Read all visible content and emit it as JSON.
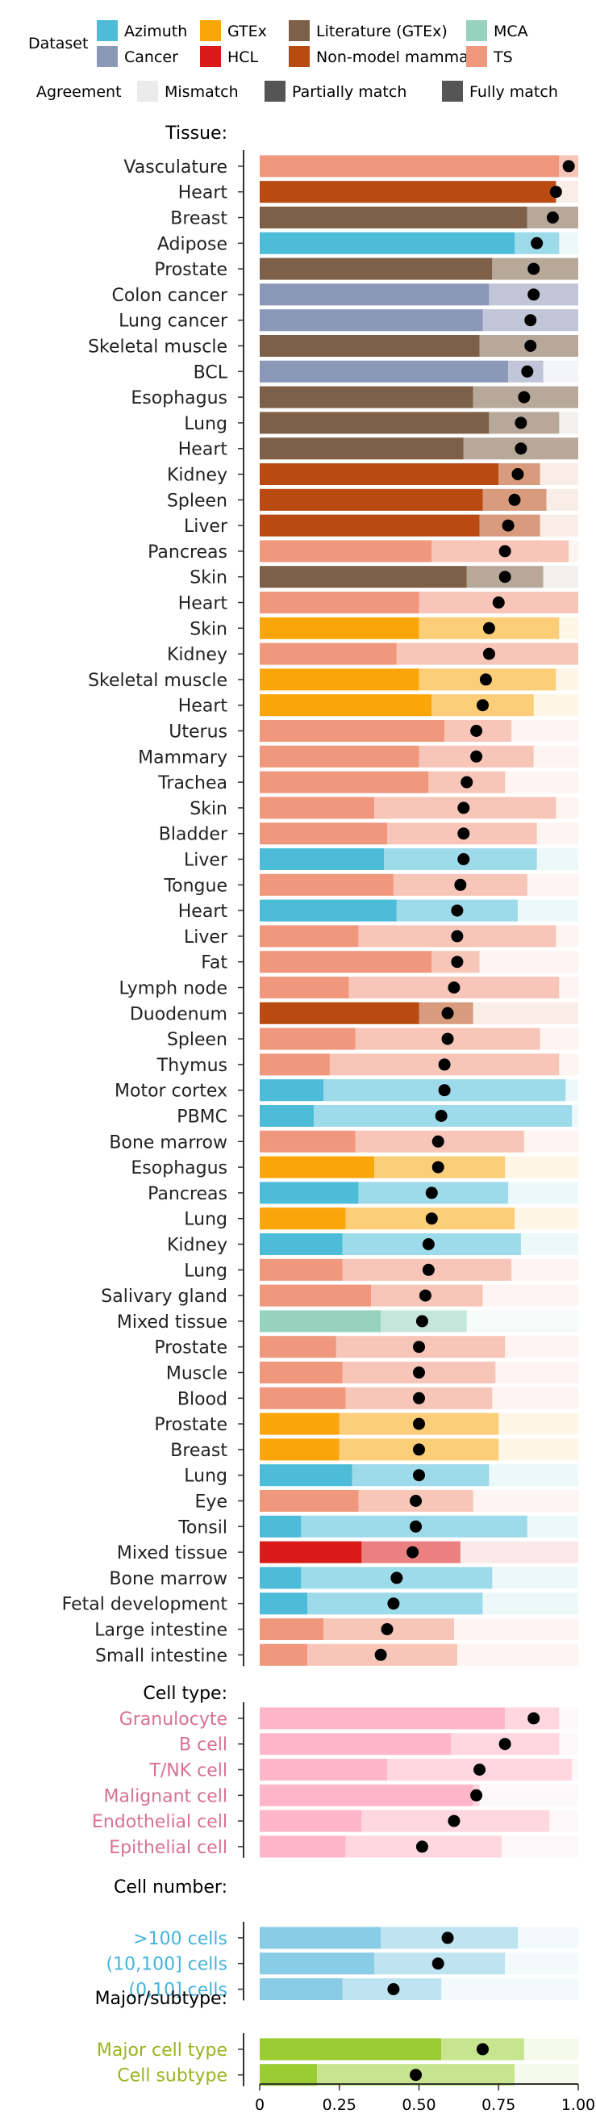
{
  "legend": {
    "dataset_title": "Dataset",
    "datasets": [
      {
        "name": "Azimuth",
        "color": "#4CBCD8"
      },
      {
        "name": "Cancer",
        "color": "#8C98B8"
      },
      {
        "name": "GTEx",
        "color": "#FAA60A"
      },
      {
        "name": "HCL",
        "color": "#D91A18"
      },
      {
        "name": "Literature (GTEx)",
        "color": "#7E6048"
      },
      {
        "name": "Non-model mammal",
        "color": "#B84A12"
      },
      {
        "name": "MCA",
        "color": "#96D2BE"
      },
      {
        "name": "TS",
        "color": "#F0987E"
      }
    ],
    "agreement_title": "Agreement",
    "agreement": [
      {
        "name": "Mismatch",
        "color": "#EBEBEB"
      },
      {
        "name": "Partially match",
        "color": "#555555"
      },
      {
        "name": "Fully match",
        "color": "#555555"
      }
    ]
  },
  "chart_data": {
    "type": "bar",
    "orientation": "horizontal",
    "stacked": true,
    "xlim": [
      0,
      1
    ],
    "xticks": [
      "0",
      "0.25",
      "0.50",
      "0.75",
      "1.00"
    ],
    "point_meaning": "dot = mean agreement score",
    "sections": [
      {
        "title": "Tissue:",
        "rows": [
          {
            "label": "Vasculature",
            "dataset": "TS",
            "full": 0.94,
            "partial": 0.06,
            "dot": 0.97
          },
          {
            "label": "Heart",
            "dataset": "Non-model mammal",
            "full": 0.93,
            "partial": 0.0,
            "dot": 0.93
          },
          {
            "label": "Breast",
            "dataset": "Literature (GTEx)",
            "full": 0.84,
            "partial": 0.16,
            "dot": 0.92
          },
          {
            "label": "Adipose",
            "dataset": "Azimuth",
            "full": 0.8,
            "partial": 0.14,
            "dot": 0.87
          },
          {
            "label": "Prostate",
            "dataset": "Literature (GTEx)",
            "full": 0.73,
            "partial": 0.27,
            "dot": 0.86
          },
          {
            "label": "Colon cancer",
            "dataset": "Cancer",
            "full": 0.72,
            "partial": 0.28,
            "dot": 0.86
          },
          {
            "label": "Lung cancer",
            "dataset": "Cancer",
            "full": 0.7,
            "partial": 0.3,
            "dot": 0.85
          },
          {
            "label": "Skeletal muscle",
            "dataset": "Literature (GTEx)",
            "full": 0.69,
            "partial": 0.31,
            "dot": 0.85
          },
          {
            "label": "BCL",
            "dataset": "Cancer",
            "full": 0.78,
            "partial": 0.11,
            "dot": 0.84
          },
          {
            "label": "Esophagus",
            "dataset": "Literature (GTEx)",
            "full": 0.67,
            "partial": 0.33,
            "dot": 0.83
          },
          {
            "label": "Lung",
            "dataset": "Literature (GTEx)",
            "full": 0.72,
            "partial": 0.22,
            "dot": 0.82
          },
          {
            "label": "Heart",
            "dataset": "Literature (GTEx)",
            "full": 0.64,
            "partial": 0.36,
            "dot": 0.82
          },
          {
            "label": "Kidney",
            "dataset": "Non-model mammal",
            "full": 0.75,
            "partial": 0.13,
            "dot": 0.81
          },
          {
            "label": "Spleen",
            "dataset": "Non-model mammal",
            "full": 0.7,
            "partial": 0.2,
            "dot": 0.8
          },
          {
            "label": "Liver",
            "dataset": "Non-model mammal",
            "full": 0.69,
            "partial": 0.19,
            "dot": 0.78
          },
          {
            "label": "Pancreas",
            "dataset": "TS",
            "full": 0.54,
            "partial": 0.43,
            "dot": 0.77
          },
          {
            "label": "Skin",
            "dataset": "Literature (GTEx)",
            "full": 0.65,
            "partial": 0.24,
            "dot": 0.77
          },
          {
            "label": "Heart",
            "dataset": "TS",
            "full": 0.5,
            "partial": 0.5,
            "dot": 0.75
          },
          {
            "label": "Skin",
            "dataset": "GTEx",
            "full": 0.5,
            "partial": 0.44,
            "dot": 0.72
          },
          {
            "label": "Kidney",
            "dataset": "TS",
            "full": 0.43,
            "partial": 0.57,
            "dot": 0.72
          },
          {
            "label": "Skeletal muscle",
            "dataset": "GTEx",
            "full": 0.5,
            "partial": 0.43,
            "dot": 0.71
          },
          {
            "label": "Heart",
            "dataset": "GTEx",
            "full": 0.54,
            "partial": 0.32,
            "dot": 0.7
          },
          {
            "label": "Uterus",
            "dataset": "TS",
            "full": 0.58,
            "partial": 0.21,
            "dot": 0.68
          },
          {
            "label": "Mammary",
            "dataset": "TS",
            "full": 0.5,
            "partial": 0.36,
            "dot": 0.68
          },
          {
            "label": "Trachea",
            "dataset": "TS",
            "full": 0.53,
            "partial": 0.24,
            "dot": 0.65
          },
          {
            "label": "Skin",
            "dataset": "TS",
            "full": 0.36,
            "partial": 0.57,
            "dot": 0.64
          },
          {
            "label": "Bladder",
            "dataset": "TS",
            "full": 0.4,
            "partial": 0.47,
            "dot": 0.64
          },
          {
            "label": "Liver",
            "dataset": "Azimuth",
            "full": 0.39,
            "partial": 0.48,
            "dot": 0.64
          },
          {
            "label": "Tongue",
            "dataset": "TS",
            "full": 0.42,
            "partial": 0.42,
            "dot": 0.63
          },
          {
            "label": "Heart",
            "dataset": "Azimuth",
            "full": 0.43,
            "partial": 0.38,
            "dot": 0.62
          },
          {
            "label": "Liver",
            "dataset": "TS",
            "full": 0.31,
            "partial": 0.62,
            "dot": 0.62
          },
          {
            "label": "Fat",
            "dataset": "TS",
            "full": 0.54,
            "partial": 0.15,
            "dot": 0.62
          },
          {
            "label": "Lymph node",
            "dataset": "TS",
            "full": 0.28,
            "partial": 0.66,
            "dot": 0.61
          },
          {
            "label": "Duodenum",
            "dataset": "Non-model mammal",
            "full": 0.5,
            "partial": 0.17,
            "dot": 0.59
          },
          {
            "label": "Spleen",
            "dataset": "TS",
            "full": 0.3,
            "partial": 0.58,
            "dot": 0.59
          },
          {
            "label": "Thymus",
            "dataset": "TS",
            "full": 0.22,
            "partial": 0.72,
            "dot": 0.58
          },
          {
            "label": "Motor cortex",
            "dataset": "Azimuth",
            "full": 0.2,
            "partial": 0.76,
            "dot": 0.58
          },
          {
            "label": "PBMC",
            "dataset": "Azimuth",
            "full": 0.17,
            "partial": 0.81,
            "dot": 0.57
          },
          {
            "label": "Bone marrow",
            "dataset": "TS",
            "full": 0.3,
            "partial": 0.53,
            "dot": 0.56
          },
          {
            "label": "Esophagus",
            "dataset": "GTEx",
            "full": 0.36,
            "partial": 0.41,
            "dot": 0.56
          },
          {
            "label": "Pancreas",
            "dataset": "Azimuth",
            "full": 0.31,
            "partial": 0.47,
            "dot": 0.54
          },
          {
            "label": "Lung",
            "dataset": "GTEx",
            "full": 0.27,
            "partial": 0.53,
            "dot": 0.54
          },
          {
            "label": "Kidney",
            "dataset": "Azimuth",
            "full": 0.26,
            "partial": 0.56,
            "dot": 0.53
          },
          {
            "label": "Lung",
            "dataset": "TS",
            "full": 0.26,
            "partial": 0.53,
            "dot": 0.53
          },
          {
            "label": "Salivary gland",
            "dataset": "TS",
            "full": 0.35,
            "partial": 0.35,
            "dot": 0.52
          },
          {
            "label": "Mixed tissue",
            "dataset": "MCA",
            "full": 0.38,
            "partial": 0.27,
            "dot": 0.51
          },
          {
            "label": "Prostate",
            "dataset": "TS",
            "full": 0.24,
            "partial": 0.53,
            "dot": 0.5
          },
          {
            "label": "Muscle",
            "dataset": "TS",
            "full": 0.26,
            "partial": 0.48,
            "dot": 0.5
          },
          {
            "label": "Blood",
            "dataset": "TS",
            "full": 0.27,
            "partial": 0.46,
            "dot": 0.5
          },
          {
            "label": "Prostate",
            "dataset": "GTEx",
            "full": 0.25,
            "partial": 0.5,
            "dot": 0.5
          },
          {
            "label": "Breast",
            "dataset": "GTEx",
            "full": 0.25,
            "partial": 0.5,
            "dot": 0.5
          },
          {
            "label": "Lung",
            "dataset": "Azimuth",
            "full": 0.29,
            "partial": 0.43,
            "dot": 0.5
          },
          {
            "label": "Eye",
            "dataset": "TS",
            "full": 0.31,
            "partial": 0.36,
            "dot": 0.49
          },
          {
            "label": "Tonsil",
            "dataset": "Azimuth",
            "full": 0.13,
            "partial": 0.71,
            "dot": 0.49
          },
          {
            "label": "Mixed tissue",
            "dataset": "HCL",
            "full": 0.32,
            "partial": 0.31,
            "dot": 0.48
          },
          {
            "label": "Bone marrow",
            "dataset": "Azimuth",
            "full": 0.13,
            "partial": 0.6,
            "dot": 0.43
          },
          {
            "label": "Fetal development",
            "dataset": "Azimuth",
            "full": 0.15,
            "partial": 0.55,
            "dot": 0.42
          },
          {
            "label": "Large intestine",
            "dataset": "TS",
            "full": 0.2,
            "partial": 0.41,
            "dot": 0.4
          },
          {
            "label": "Small intestine",
            "dataset": "TS",
            "full": 0.15,
            "partial": 0.47,
            "dot": 0.38
          }
        ]
      },
      {
        "title": "Cell type:",
        "color": "#FFB6C8",
        "text_color": "#D87096",
        "rows": [
          {
            "label": "Granulocyte",
            "full": 0.77,
            "partial": 0.17,
            "dot": 0.86
          },
          {
            "label": "B cell",
            "full": 0.6,
            "partial": 0.34,
            "dot": 0.77
          },
          {
            "label": "T/NK cell",
            "full": 0.4,
            "partial": 0.58,
            "dot": 0.69
          },
          {
            "label": "Malignant cell",
            "full": 0.67,
            "partial": 0.02,
            "dot": 0.68
          },
          {
            "label": "Endothelial cell",
            "full": 0.32,
            "partial": 0.59,
            "dot": 0.61
          },
          {
            "label": "Epithelial cell",
            "full": 0.27,
            "partial": 0.49,
            "dot": 0.51
          }
        ]
      },
      {
        "title": "Cell number:",
        "color": "#88CCE6",
        "text_color": "#42B4DA",
        "rows": [
          {
            "label": ">100 cells",
            "full": 0.38,
            "partial": 0.43,
            "dot": 0.59
          },
          {
            "label": "(10,100] cells",
            "full": 0.36,
            "partial": 0.41,
            "dot": 0.56
          },
          {
            "label": "(0,10] cells",
            "full": 0.26,
            "partial": 0.31,
            "dot": 0.42
          }
        ]
      },
      {
        "title": "Major/subtype:",
        "color": "#9ACD32",
        "text_color": "#9AB320",
        "rows": [
          {
            "label": "Major cell type",
            "full": 0.57,
            "partial": 0.26,
            "dot": 0.7
          },
          {
            "label": "Cell subtype",
            "full": 0.18,
            "partial": 0.62,
            "dot": 0.49
          }
        ]
      }
    ]
  }
}
